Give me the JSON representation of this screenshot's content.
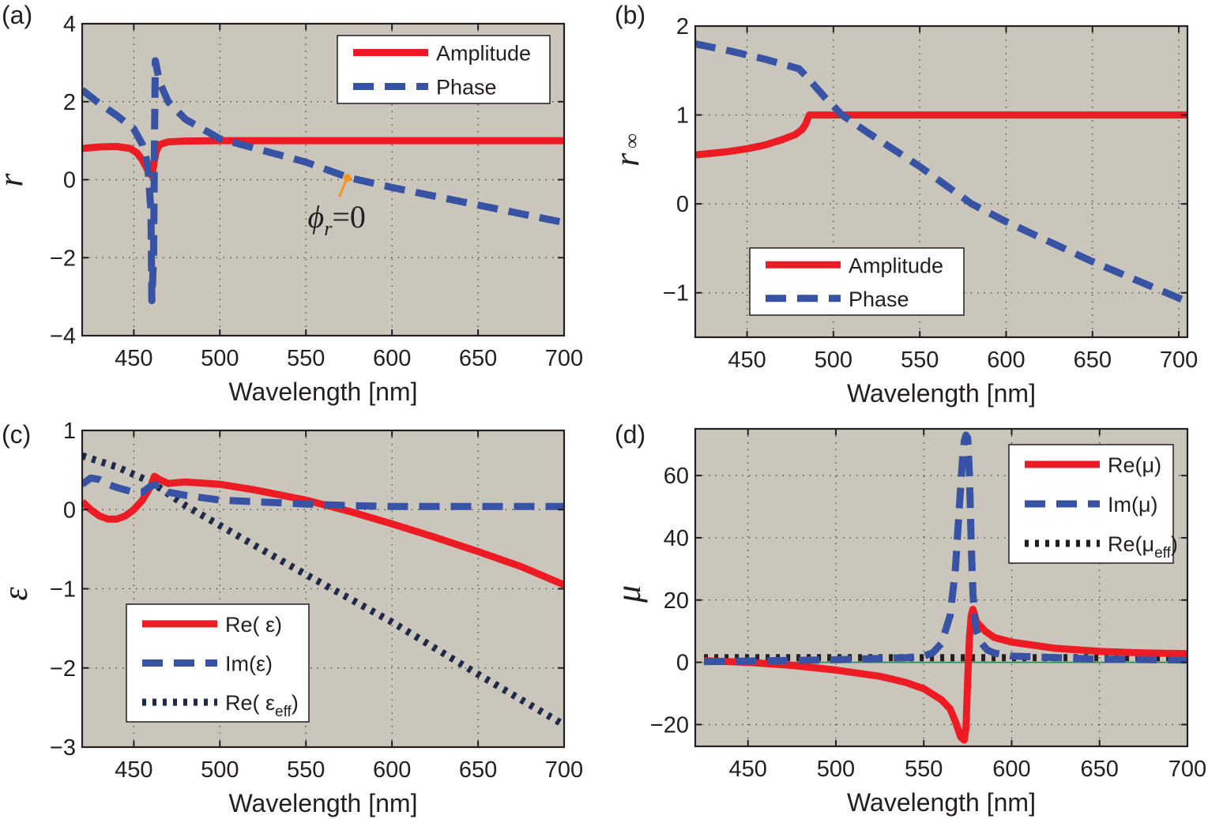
{
  "chart_data": [
    {
      "panel": "(a)",
      "type": "line",
      "ylabel": "r",
      "xlabel": "Wavelength [nm]",
      "xlim": [
        420,
        700
      ],
      "ylim": [
        -4,
        4
      ],
      "xticks": [
        450,
        500,
        550,
        600,
        650,
        700
      ],
      "yticks": [
        4,
        2,
        0,
        -2,
        -4
      ],
      "ytick_labels": [
        "4",
        "2",
        "0",
        "−2",
        "−4"
      ],
      "grid": true,
      "legend": "top-right",
      "series": [
        {
          "name": "Amplitude",
          "style": "solid",
          "color": "#ed1c24",
          "x": [
            420,
            430,
            440,
            448,
            452,
            455,
            458,
            460,
            461,
            462,
            463,
            465,
            470,
            480,
            500,
            550,
            600,
            650,
            700
          ],
          "y": [
            0.8,
            0.84,
            0.85,
            0.8,
            0.68,
            0.5,
            0.25,
            0.12,
            0.22,
            0.5,
            0.72,
            0.9,
            0.97,
            0.99,
            1.0,
            1.0,
            1.0,
            1.0,
            1.0
          ]
        },
        {
          "name": "Phase",
          "style": "dashed",
          "color": "#3953a4",
          "x": [
            420,
            430,
            440,
            450,
            455,
            458,
            460,
            460.5,
            461.5,
            462,
            462.5,
            465,
            470,
            480,
            500,
            550,
            575,
            600,
            650,
            700
          ],
          "y": [
            2.3,
            1.95,
            1.65,
            1.3,
            0.9,
            0.4,
            -0.8,
            -3.1,
            -2.0,
            1.0,
            3.05,
            2.5,
            2.0,
            1.55,
            1.05,
            0.45,
            0.05,
            -0.2,
            -0.65,
            -1.1
          ]
        }
      ],
      "annotation": {
        "text": "ϕ",
        "sub": "r",
        "suffix": "=0",
        "x": 574,
        "y": 0.05
      }
    },
    {
      "panel": "(b)",
      "type": "line",
      "ylabel": "r",
      "ylabel_sub": "∞",
      "xlabel": "Wavelength [nm]",
      "xlim": [
        420,
        705
      ],
      "ylim": [
        -1.5,
        2
      ],
      "xticks": [
        450,
        500,
        550,
        600,
        650,
        700
      ],
      "yticks": [
        2,
        1,
        0,
        -1
      ],
      "ytick_labels": [
        "2",
        "1",
        "0",
        "−1"
      ],
      "grid": true,
      "legend": "bottom-center",
      "series": [
        {
          "name": "Amplitude",
          "style": "solid",
          "color": "#ed1c24",
          "x": [
            420,
            430,
            440,
            450,
            460,
            470,
            478,
            482,
            484,
            486,
            490,
            500,
            550,
            600,
            650,
            705
          ],
          "y": [
            0.55,
            0.57,
            0.59,
            0.62,
            0.66,
            0.72,
            0.78,
            0.84,
            0.9,
            1.0,
            1.0,
            1.0,
            1.0,
            1.0,
            1.0,
            1.0
          ]
        },
        {
          "name": "Phase",
          "style": "dashed",
          "color": "#3953a4",
          "x": [
            420,
            440,
            460,
            480,
            485,
            495,
            505,
            520,
            550,
            580,
            600,
            650,
            705
          ],
          "y": [
            1.8,
            1.72,
            1.63,
            1.52,
            1.42,
            1.2,
            1.0,
            0.8,
            0.42,
            0.0,
            -0.2,
            -0.65,
            -1.1
          ]
        }
      ]
    },
    {
      "panel": "(c)",
      "type": "line",
      "ylabel": "ε",
      "xlabel": "Wavelength [nm]",
      "xlim": [
        420,
        700
      ],
      "ylim": [
        -3,
        1
      ],
      "xticks": [
        450,
        500,
        550,
        600,
        650,
        700
      ],
      "yticks": [
        1,
        0,
        -1,
        -2,
        -3
      ],
      "ytick_labels": [
        "1",
        "0",
        "−1",
        "−2",
        "−3"
      ],
      "grid": true,
      "legend": "bottom-left",
      "series": [
        {
          "name": "Re( ε)",
          "legend_main": "Re( ε",
          "legend_sub": "",
          "legend_close": ")",
          "style": "solid",
          "color": "#ed1c24",
          "x": [
            420,
            425,
            430,
            435,
            440,
            445,
            450,
            455,
            460,
            462,
            465,
            470,
            480,
            500,
            520,
            550,
            575,
            600,
            625,
            650,
            675,
            700
          ],
          "y": [
            0.1,
            0.0,
            -0.08,
            -0.12,
            -0.12,
            -0.08,
            0.0,
            0.12,
            0.3,
            0.42,
            0.38,
            0.33,
            0.35,
            0.32,
            0.25,
            0.12,
            -0.02,
            -0.18,
            -0.35,
            -0.53,
            -0.72,
            -0.95
          ]
        },
        {
          "name": "Im(ε)",
          "legend_main": "Im(ε",
          "legend_sub": "",
          "legend_close": ")",
          "style": "dashed",
          "color": "#3953a4",
          "x": [
            420,
            425,
            430,
            435,
            440,
            450,
            455,
            460,
            465,
            470,
            480,
            500,
            520,
            550,
            575,
            600,
            650,
            700
          ],
          "y": [
            0.32,
            0.4,
            0.38,
            0.32,
            0.28,
            0.22,
            0.22,
            0.3,
            0.32,
            0.22,
            0.18,
            0.12,
            0.1,
            0.07,
            0.05,
            0.04,
            0.04,
            0.04
          ]
        },
        {
          "name": "Re( εeff)",
          "legend_main": "Re( ε",
          "legend_sub": "eff",
          "legend_close": ")",
          "style": "dotted",
          "color": "#1f2a4a",
          "x": [
            420,
            440,
            460,
            480,
            500,
            520,
            550,
            575,
            600,
            625,
            650,
            675,
            700
          ],
          "y": [
            0.68,
            0.54,
            0.35,
            0.05,
            -0.2,
            -0.45,
            -0.82,
            -1.12,
            -1.42,
            -1.75,
            -2.08,
            -2.4,
            -2.72
          ]
        }
      ]
    },
    {
      "panel": "(d)",
      "type": "line",
      "ylabel": "μ",
      "xlabel": "Wavelength [nm]",
      "xlim": [
        420,
        700
      ],
      "ylim": [
        -27,
        75
      ],
      "xticks": [
        450,
        500,
        550,
        600,
        650,
        700
      ],
      "yticks": [
        60,
        40,
        20,
        0,
        -20
      ],
      "ytick_labels": [
        "60",
        "40",
        "20",
        "0",
        "−20"
      ],
      "grid": true,
      "legend": "top-right",
      "series": [
        {
          "name": "Re(μ)",
          "legend_main": "Re(μ",
          "legend_sub": "",
          "legend_close": ")",
          "style": "solid",
          "color": "#ed1c24",
          "x": [
            425,
            450,
            475,
            500,
            525,
            540,
            550,
            560,
            565,
            568,
            571,
            573,
            574,
            575,
            576,
            577,
            578,
            580,
            585,
            590,
            600,
            625,
            650,
            675,
            700
          ],
          "y": [
            0.5,
            0.0,
            -1.0,
            -2.5,
            -4.5,
            -6.5,
            -8.5,
            -12,
            -15,
            -19,
            -24,
            -25,
            -21,
            -5,
            8,
            15,
            17,
            13,
            10,
            8,
            6.5,
            4.5,
            3.5,
            3.0,
            2.8
          ]
        },
        {
          "name": "Im(μ)",
          "legend_main": "Im(μ",
          "legend_sub": "",
          "legend_close": ")",
          "style": "dashed",
          "color": "#3953a4",
          "x": [
            425,
            450,
            500,
            540,
            550,
            555,
            560,
            565,
            568,
            570,
            572,
            573,
            574,
            575,
            576,
            577,
            578,
            579,
            580,
            583,
            586,
            590,
            600,
            650,
            700
          ],
          "y": [
            0.2,
            0.4,
            0.8,
            1.5,
            2.0,
            3.0,
            6,
            15,
            30,
            48,
            65,
            71,
            73,
            72,
            60,
            38,
            22,
            14,
            10,
            6,
            4,
            3,
            2,
            1,
            0.7
          ]
        },
        {
          "name": "Re(μeff)",
          "legend_main": "Re(μ",
          "legend_sub": "eff",
          "legend_close": ")",
          "style": "dotted",
          "color": "#231f20",
          "x": [
            425,
            700
          ],
          "y": [
            1.5,
            1.5
          ]
        },
        {
          "name": "zero-line",
          "legend": false,
          "style": "thin",
          "color": "#2e8b57",
          "x": [
            425,
            700
          ],
          "y": [
            0,
            0
          ]
        }
      ]
    }
  ]
}
